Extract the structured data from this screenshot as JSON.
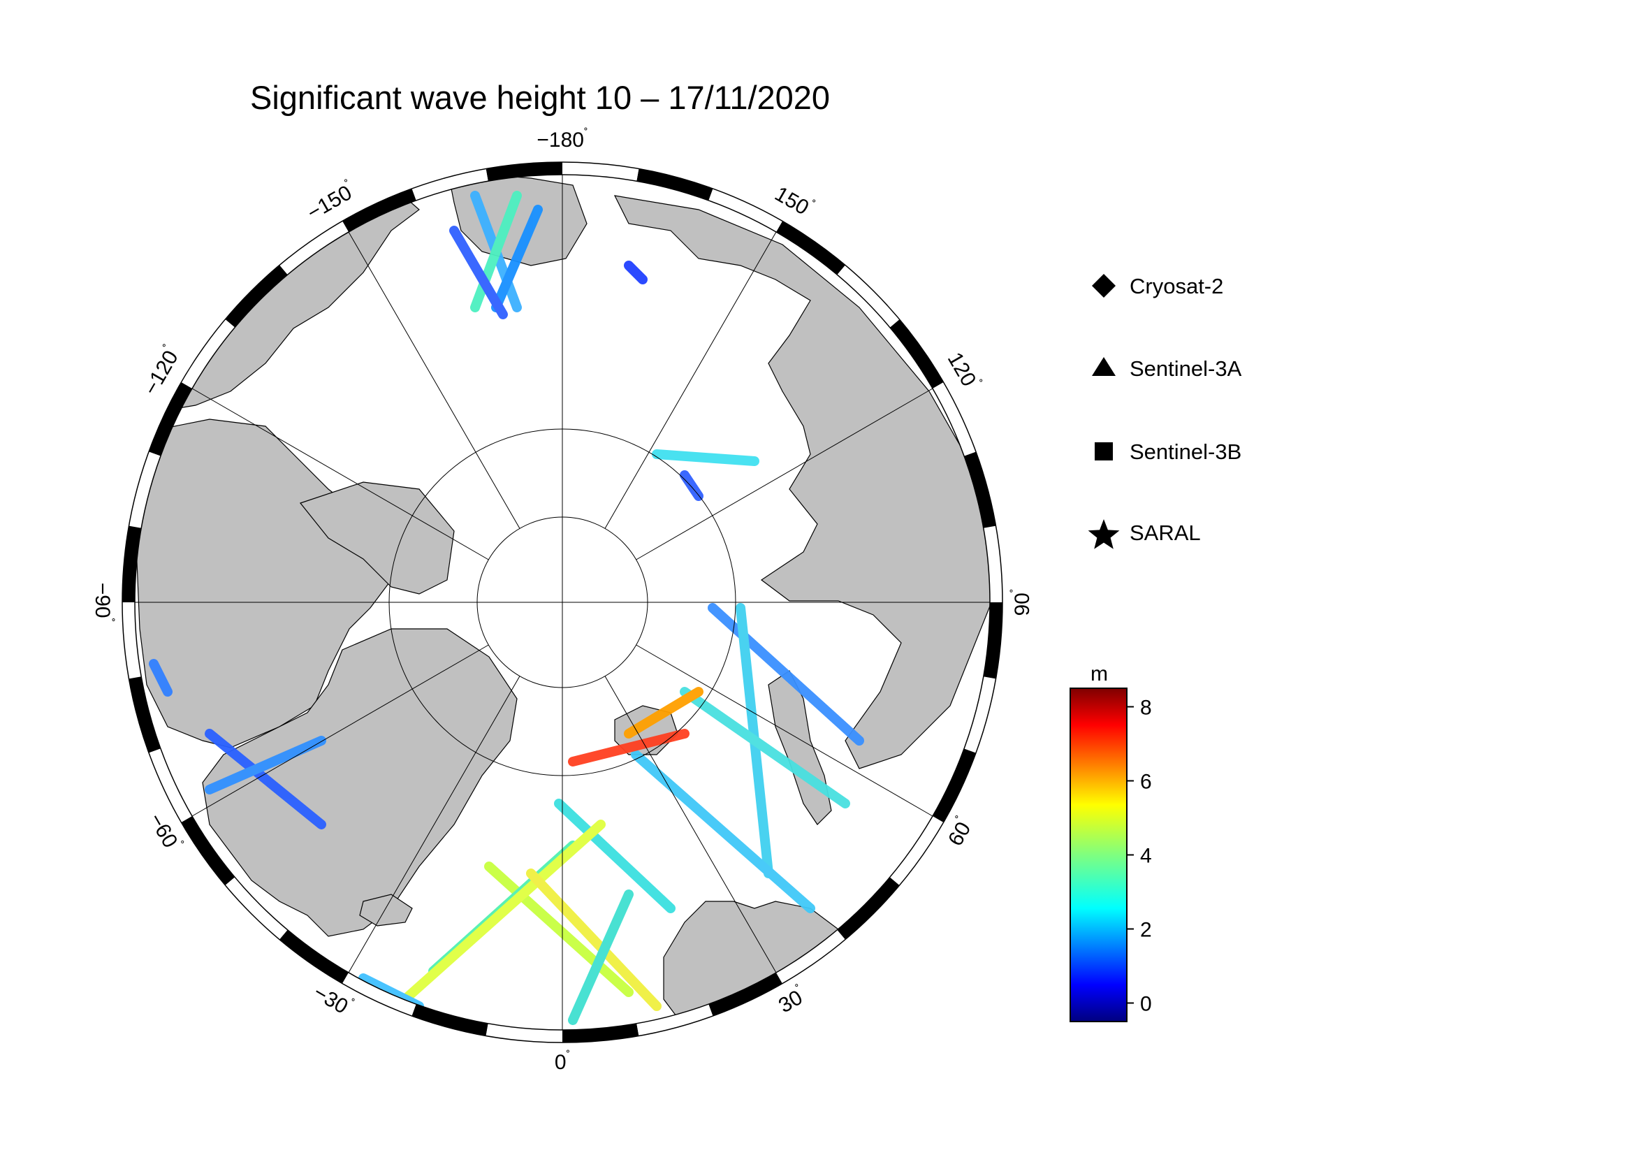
{
  "title": "Significant wave height 10 – 17/11/2020",
  "longitude_labels": [
    {
      "lon": -180,
      "text": "−180"
    },
    {
      "lon": -150,
      "text": "−150"
    },
    {
      "lon": -120,
      "text": "−120"
    },
    {
      "lon": -90,
      "text": "−90"
    },
    {
      "lon": -60,
      "text": "−60"
    },
    {
      "lon": -30,
      "text": "−30"
    },
    {
      "lon": 0,
      "text": "0"
    },
    {
      "lon": 30,
      "text": "30"
    },
    {
      "lon": 60,
      "text": "60"
    },
    {
      "lon": 90,
      "text": "90"
    },
    {
      "lon": 120,
      "text": "120"
    },
    {
      "lon": 150,
      "text": "150"
    }
  ],
  "degree_symbol": "˚",
  "legend": {
    "items": [
      {
        "label": "Cryosat-2",
        "symbol": "diamond-icon"
      },
      {
        "label": "Sentinel-3A",
        "symbol": "triangle-icon"
      },
      {
        "label": "Sentinel-3B",
        "symbol": "square-icon"
      },
      {
        "label": "SARAL",
        "symbol": "star-icon"
      }
    ]
  },
  "colorbar": {
    "unit": "m",
    "min": -0.5,
    "max": 8.5,
    "ticks": [
      {
        "value": 0,
        "label": "0"
      },
      {
        "value": 2,
        "label": "2"
      },
      {
        "value": 4,
        "label": "4"
      },
      {
        "value": 6,
        "label": "6"
      },
      {
        "value": 8,
        "label": "8"
      }
    ],
    "colormap": "jet"
  },
  "colors": {
    "land": "#c0c0c0",
    "ocean": "#ffffff",
    "frame_dark": "#000000",
    "frame_light": "#ffffff",
    "graticule": "#000000"
  }
}
